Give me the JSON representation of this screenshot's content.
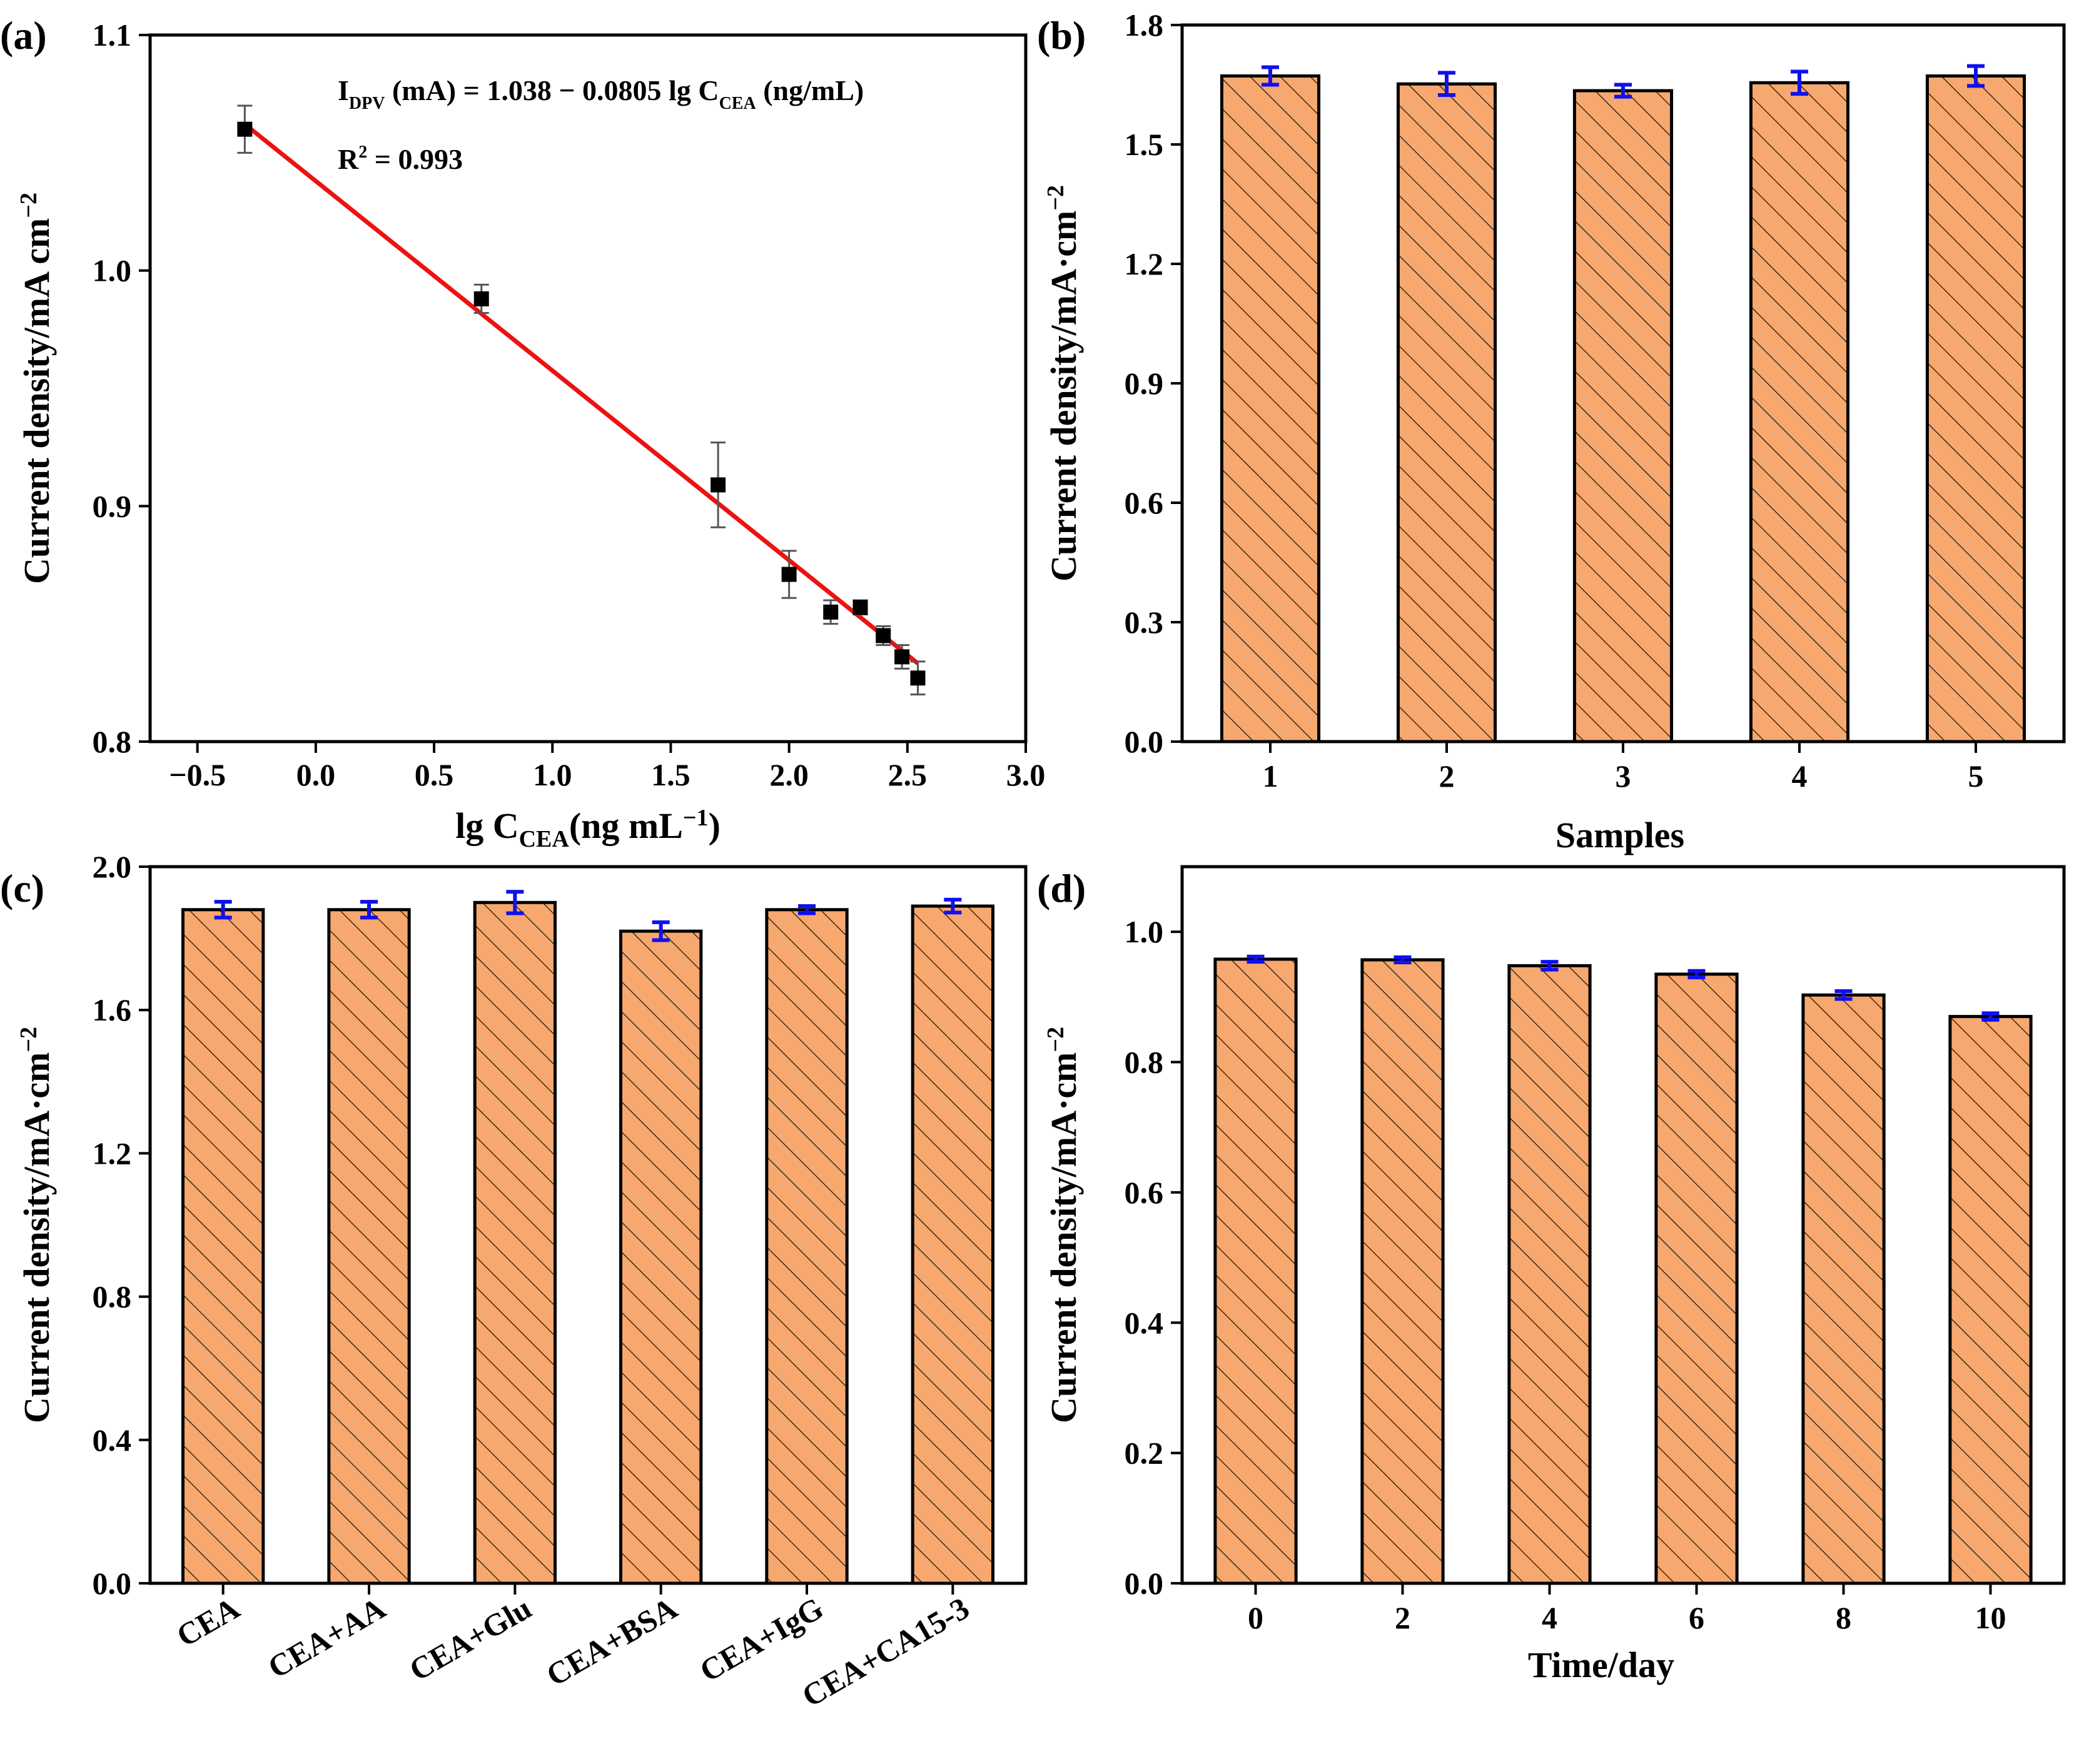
{
  "colors": {
    "bar_fill": "#F7A86E",
    "hatch": "#3a2a1a",
    "error_bar": "#1010EE",
    "fit_line": "#EE1111",
    "point": "#000000"
  },
  "chart_data": [
    {
      "panel": "(a)",
      "type": "scatter",
      "equation_main": "I",
      "equation_sub1": "DPV",
      "equation_rest1": " (mA) = 1.038 − 0.0805 lg C",
      "equation_sub2": "CEA",
      "equation_rest2": " (ng/mL)",
      "r2_label": "R",
      "r2_sup": "2",
      "r2_value": " = 0.993",
      "xlabel_main": "lg C",
      "xlabel_sub": "CEA",
      "xlabel_rest": "(ng mL",
      "xlabel_sup": "−1",
      "xlabel_end": ")",
      "ylabel": "Current density/mA cm",
      "ylabel_sup": "−2",
      "xlim": [
        -0.7,
        3.0
      ],
      "ylim": [
        0.8,
        1.1
      ],
      "xticks": [
        -0.5,
        0.0,
        0.5,
        1.0,
        1.5,
        2.0,
        2.5,
        3.0
      ],
      "xtick_labels": [
        "−0.5",
        "0.0",
        "0.5",
        "1.0",
        "1.5",
        "2.0",
        "2.5",
        "3.0"
      ],
      "yticks": [
        0.8,
        0.9,
        1.0,
        1.1
      ],
      "ytick_labels": [
        "0.8",
        "0.9",
        "1.0",
        "1.1"
      ],
      "x": [
        -0.3,
        0.7,
        1.7,
        2.0,
        2.176,
        2.301,
        2.398,
        2.477,
        2.544
      ],
      "y": [
        1.06,
        0.988,
        0.909,
        0.871,
        0.855,
        0.857,
        0.845,
        0.836,
        0.827
      ],
      "err": [
        0.01,
        0.006,
        0.018,
        0.01,
        0.005,
        0.003,
        0.004,
        0.005,
        0.007
      ],
      "fit": {
        "x": [
          -0.3,
          2.544
        ],
        "intercept": 1.038,
        "slope": -0.0805
      }
    },
    {
      "panel": "(b)",
      "type": "bar",
      "xlabel": "Samples",
      "ylabel": "Current density/mA·cm",
      "ylabel_sup": "−2",
      "categories": [
        "1",
        "2",
        "3",
        "4",
        "5"
      ],
      "values": [
        1.672,
        1.652,
        1.635,
        1.655,
        1.672
      ],
      "err": [
        0.022,
        0.028,
        0.015,
        0.028,
        0.025
      ],
      "ylim": [
        0.0,
        1.8
      ],
      "yticks": [
        0.0,
        0.3,
        0.6,
        0.9,
        1.2,
        1.5,
        1.8
      ],
      "ytick_labels": [
        "0.0",
        "0.3",
        "0.6",
        "0.9",
        "1.2",
        "1.5",
        "1.8"
      ]
    },
    {
      "panel": "(c)",
      "type": "bar",
      "xlabel": "",
      "ylabel": "Current density/mA·cm",
      "ylabel_sup": "−2",
      "categories": [
        "CEA",
        "CEA+AA",
        "CEA+Glu",
        "CEA+BSA",
        "CEA+IgG",
        "CEA+CA15-3"
      ],
      "values": [
        1.88,
        1.88,
        1.9,
        1.82,
        1.88,
        1.89
      ],
      "err": [
        0.022,
        0.022,
        0.03,
        0.025,
        0.01,
        0.018
      ],
      "ylim": [
        0.0,
        2.0
      ],
      "yticks": [
        0.0,
        0.4,
        0.8,
        1.2,
        1.6,
        2.0
      ],
      "ytick_labels": [
        "0.0",
        "0.4",
        "0.8",
        "1.2",
        "1.6",
        "2.0"
      ]
    },
    {
      "panel": "(d)",
      "type": "bar",
      "xlabel": "Time/day",
      "ylabel": "Current density/mA·cm",
      "ylabel_sup": "−2",
      "categories": [
        "0",
        "2",
        "4",
        "6",
        "8",
        "10"
      ],
      "values": [
        0.958,
        0.957,
        0.948,
        0.935,
        0.903,
        0.87
      ],
      "err": [
        0.004,
        0.004,
        0.006,
        0.005,
        0.006,
        0.005
      ],
      "ylim": [
        0.0,
        1.1
      ],
      "yticks": [
        0.0,
        0.2,
        0.4,
        0.6,
        0.8,
        1.0
      ],
      "ytick_labels": [
        "0.0",
        "0.2",
        "0.4",
        "0.6",
        "0.8",
        "1.0"
      ]
    }
  ]
}
